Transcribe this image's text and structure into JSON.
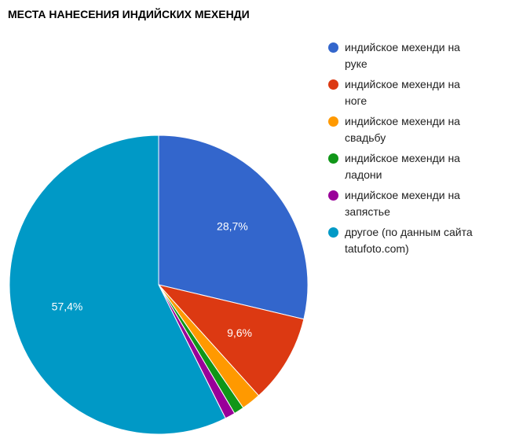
{
  "title": "МЕСТА НАНЕСЕНИЯ ИНДИЙСКИХ МЕХЕНДИ",
  "chart_data": {
    "type": "pie",
    "title": "МЕСТА НАНЕСЕНИЯ ИНДИЙСКИХ МЕХЕНДИ",
    "categories": [
      "индийское мехенди на руке",
      "индийское мехенди на ноге",
      "индийское мехенди на свадьбу",
      "индийское мехенди на ладони",
      "индийское мехенди на запястье",
      "другое (по данным сайта tatufoto.com)"
    ],
    "values": [
      28.7,
      9.6,
      2.1,
      1.1,
      1.1,
      57.4
    ],
    "labels": [
      "28,7%",
      "9,6%",
      "",
      "",
      "",
      "57,4%"
    ],
    "colors": [
      "#3366cc",
      "#dc3912",
      "#ff9900",
      "#109618",
      "#990099",
      "#0099c6"
    ],
    "legend_position": "right",
    "start_angle_deg": 0,
    "direction": "clockwise"
  },
  "legend": [
    {
      "line1": "индийское мехенди на",
      "line2": "руке"
    },
    {
      "line1": "индийское мехенди на",
      "line2": "ноге"
    },
    {
      "line1": "индийское мехенди на",
      "line2": "свадьбу"
    },
    {
      "line1": "индийское мехенди на",
      "line2": "ладони"
    },
    {
      "line1": "индийское мехенди на",
      "line2": "запястье"
    },
    {
      "line1": "другое (по данным сайта",
      "line2": "tatufoto.com)"
    }
  ]
}
